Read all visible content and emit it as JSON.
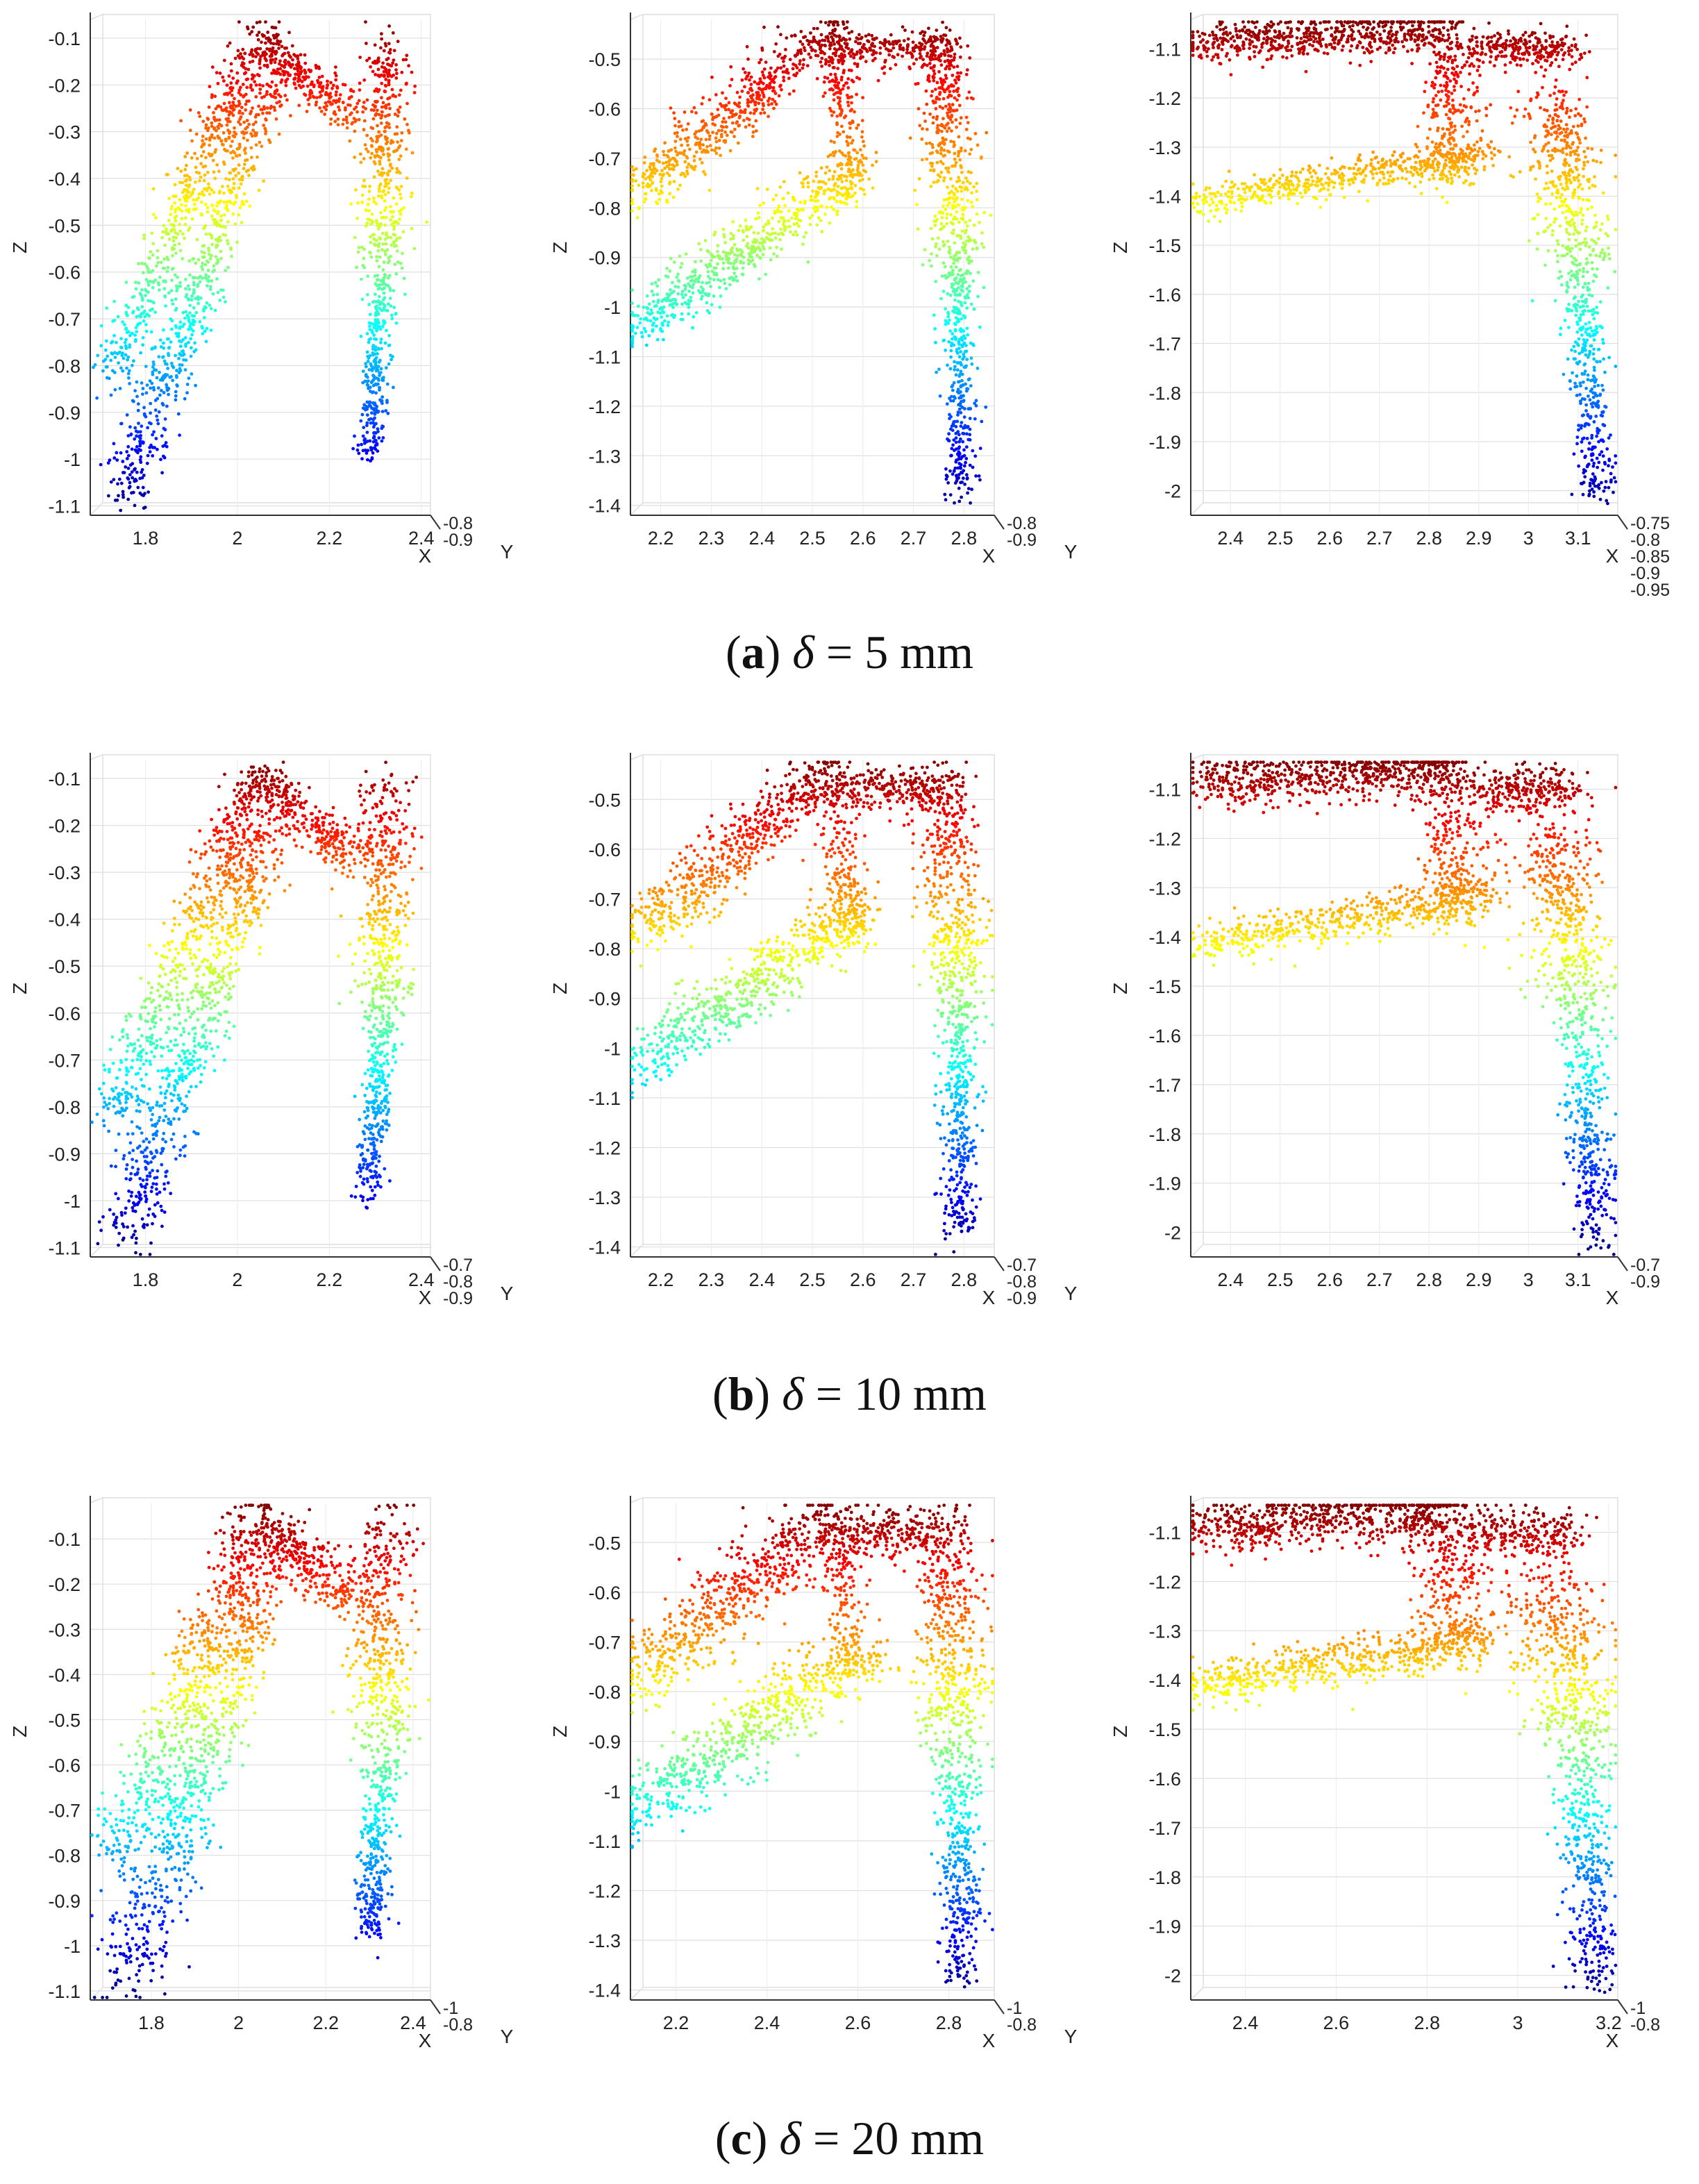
{
  "chart_data": [
    {
      "type": "scatter",
      "row": "a",
      "column": 1,
      "view": "front-left",
      "zlabel": "Z",
      "xlabel": "X",
      "ylabel": "Y",
      "xticks": [
        "1.8",
        "2",
        "2.2",
        "2.4"
      ],
      "xlim": [
        1.68,
        2.42
      ],
      "zticks": [
        "-0.1",
        "-0.2",
        "-0.3",
        "-0.4",
        "-0.5",
        "-0.6",
        "-0.7",
        "-0.8",
        "-0.9",
        "-1",
        "-1.1"
      ],
      "zlim": [
        -1.12,
        -0.06
      ],
      "yticks": [
        "-0.8",
        "-0.9"
      ],
      "colormap": [
        "#00008f",
        "#0000ff",
        "#0080ff",
        "#00ffff",
        "#80ff80",
        "#ffff00",
        "#ff8000",
        "#ff0000",
        "#800000"
      ]
    },
    {
      "type": "scatter",
      "row": "a",
      "column": 2,
      "view": "front-middle",
      "zlabel": "Z",
      "xlabel": "X",
      "ylabel": "Y",
      "xticks": [
        "2.2",
        "2.3",
        "2.4",
        "2.5",
        "2.6",
        "2.7",
        "2.8"
      ],
      "xlim": [
        2.14,
        2.86
      ],
      "zticks": [
        "-0.5",
        "-0.6",
        "-0.7",
        "-0.8",
        "-0.9",
        "-1",
        "-1.1",
        "-1.2",
        "-1.3",
        "-1.4"
      ],
      "zlim": [
        -1.42,
        -0.42
      ],
      "yticks": [
        "-0.8",
        "-0.9"
      ],
      "colormap": [
        "#00008f",
        "#0000ff",
        "#0080ff",
        "#00ffff",
        "#80ff80",
        "#ffff00",
        "#ff8000",
        "#ff0000",
        "#800000"
      ]
    },
    {
      "type": "scatter",
      "row": "a",
      "column": 3,
      "view": "front-right",
      "zlabel": "Z",
      "xlabel": "X",
      "ylabel": "",
      "xticks": [
        "2.4",
        "2.5",
        "2.6",
        "2.7",
        "2.8",
        "2.9",
        "3",
        "3.1"
      ],
      "xlim": [
        2.32,
        3.18
      ],
      "zticks": [
        "-1.1",
        "-1.2",
        "-1.3",
        "-1.4",
        "-1.5",
        "-1.6",
        "-1.7",
        "-1.8",
        "-1.9",
        "-2"
      ],
      "zlim": [
        -2.05,
        -1.04
      ],
      "yticks": [
        "-0.75",
        "-0.8",
        "-0.85",
        "-0.9",
        "-0.95"
      ],
      "colormap": [
        "#00008f",
        "#0000ff",
        "#0080ff",
        "#00ffff",
        "#80ff80",
        "#ffff00",
        "#ff8000",
        "#ff0000",
        "#800000"
      ]
    },
    {
      "type": "scatter",
      "row": "b",
      "column": 1,
      "view": "front-left",
      "zlabel": "Z",
      "xlabel": "X",
      "ylabel": "Y",
      "xticks": [
        "1.8",
        "2",
        "2.2",
        "2.4"
      ],
      "xlim": [
        1.68,
        2.42
      ],
      "zticks": [
        "-0.1",
        "-0.2",
        "-0.3",
        "-0.4",
        "-0.5",
        "-0.6",
        "-0.7",
        "-0.8",
        "-0.9",
        "-1",
        "-1.1"
      ],
      "zlim": [
        -1.12,
        -0.06
      ],
      "yticks": [
        "-0.7",
        "-0.8",
        "-0.9"
      ],
      "colormap": [
        "#00008f",
        "#0000ff",
        "#0080ff",
        "#00ffff",
        "#80ff80",
        "#ffff00",
        "#ff8000",
        "#ff0000",
        "#800000"
      ]
    },
    {
      "type": "scatter",
      "row": "b",
      "column": 2,
      "view": "front-middle",
      "zlabel": "Z",
      "xlabel": "X",
      "ylabel": "Y",
      "xticks": [
        "2.2",
        "2.3",
        "2.4",
        "2.5",
        "2.6",
        "2.7",
        "2.8"
      ],
      "xlim": [
        2.14,
        2.86
      ],
      "zticks": [
        "-0.5",
        "-0.6",
        "-0.7",
        "-0.8",
        "-0.9",
        "-1",
        "-1.1",
        "-1.2",
        "-1.3",
        "-1.4"
      ],
      "zlim": [
        -1.42,
        -0.42
      ],
      "yticks": [
        "-0.7",
        "-0.8",
        "-0.9"
      ],
      "colormap": [
        "#00008f",
        "#0000ff",
        "#0080ff",
        "#00ffff",
        "#80ff80",
        "#ffff00",
        "#ff8000",
        "#ff0000",
        "#800000"
      ]
    },
    {
      "type": "scatter",
      "row": "b",
      "column": 3,
      "view": "front-right",
      "zlabel": "Z",
      "xlabel": "X",
      "ylabel": "",
      "xticks": [
        "2.4",
        "2.5",
        "2.6",
        "2.7",
        "2.8",
        "2.9",
        "3",
        "3.1"
      ],
      "xlim": [
        2.32,
        3.18
      ],
      "zticks": [
        "-1.1",
        "-1.2",
        "-1.3",
        "-1.4",
        "-1.5",
        "-1.6",
        "-1.7",
        "-1.8",
        "-1.9",
        "-2"
      ],
      "zlim": [
        -2.05,
        -1.04
      ],
      "yticks": [
        "-0.7",
        "-0.9"
      ],
      "colormap": [
        "#00008f",
        "#0000ff",
        "#0080ff",
        "#00ffff",
        "#80ff80",
        "#ffff00",
        "#ff8000",
        "#ff0000",
        "#800000"
      ]
    },
    {
      "type": "scatter",
      "row": "c",
      "column": 1,
      "view": "front-left",
      "zlabel": "Z",
      "xlabel": "X",
      "ylabel": "Y",
      "xticks": [
        "1.8",
        "2",
        "2.2",
        "2.4"
      ],
      "xlim": [
        1.66,
        2.44
      ],
      "zticks": [
        "-0.1",
        "-0.2",
        "-0.3",
        "-0.4",
        "-0.5",
        "-0.6",
        "-0.7",
        "-0.8",
        "-0.9",
        "-1",
        "-1.1"
      ],
      "zlim": [
        -1.12,
        -0.02
      ],
      "yticks": [
        "-1",
        "-0.8"
      ],
      "colormap": [
        "#00008f",
        "#0000ff",
        "#0080ff",
        "#00ffff",
        "#80ff80",
        "#ffff00",
        "#ff8000",
        "#ff0000",
        "#800000"
      ]
    },
    {
      "type": "scatter",
      "row": "c",
      "column": 2,
      "view": "front-middle",
      "zlabel": "Z",
      "xlabel": "X",
      "ylabel": "Y",
      "xticks": [
        "2.2",
        "2.4",
        "2.6",
        "2.8"
      ],
      "xlim": [
        2.1,
        2.9
      ],
      "zticks": [
        "-0.5",
        "-0.6",
        "-0.7",
        "-0.8",
        "-0.9",
        "-1",
        "-1.1",
        "-1.2",
        "-1.3",
        "-1.4"
      ],
      "zlim": [
        -1.42,
        -0.42
      ],
      "yticks": [
        "-1",
        "-0.8"
      ],
      "colormap": [
        "#00008f",
        "#0000ff",
        "#0080ff",
        "#00ffff",
        "#80ff80",
        "#ffff00",
        "#ff8000",
        "#ff0000",
        "#800000"
      ]
    },
    {
      "type": "scatter",
      "row": "c",
      "column": 3,
      "view": "front-right",
      "zlabel": "Z",
      "xlabel": "X",
      "ylabel": "",
      "xticks": [
        "2.4",
        "2.6",
        "2.8",
        "3",
        "3.2"
      ],
      "xlim": [
        2.28,
        3.22
      ],
      "zticks": [
        "-1.1",
        "-1.2",
        "-1.3",
        "-1.4",
        "-1.5",
        "-1.6",
        "-1.7",
        "-1.8",
        "-1.9",
        "-2"
      ],
      "zlim": [
        -2.05,
        -1.04
      ],
      "yticks": [
        "-1",
        "-0.8"
      ],
      "colormap": [
        "#00008f",
        "#0000ff",
        "#0080ff",
        "#00ffff",
        "#80ff80",
        "#ffff00",
        "#ff8000",
        "#ff0000",
        "#800000"
      ]
    }
  ],
  "captions": [
    {
      "label": "a",
      "symbol": "δ",
      "text": " = 5 mm"
    },
    {
      "label": "b",
      "symbol": "δ",
      "text": " = 10 mm"
    },
    {
      "label": "c",
      "symbol": "δ",
      "text": " = 20 mm"
    }
  ]
}
